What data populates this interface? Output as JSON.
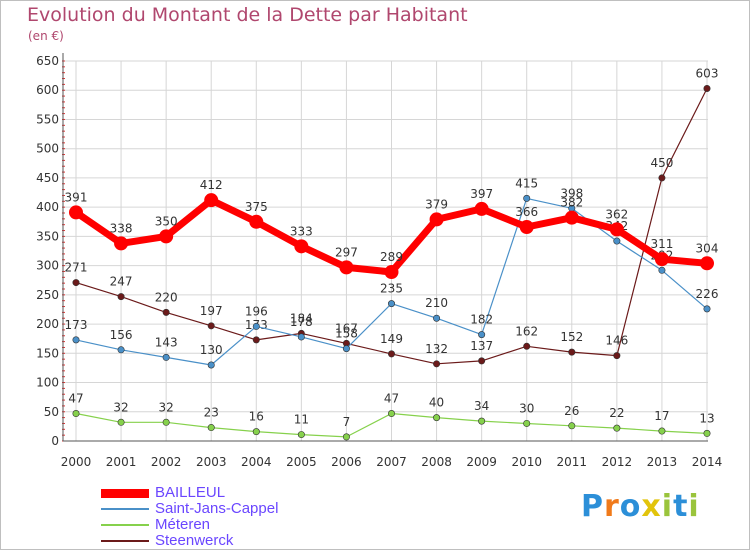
{
  "title": "Evolution du Montant de la Dette par Habitant",
  "subtitle": "(en €)",
  "brand": {
    "letters": [
      "P",
      "r",
      "o",
      "x",
      "i",
      "t",
      "i"
    ],
    "colors": [
      "#2c8fd8",
      "#f07a1a",
      "#2c8fd8",
      "#e2c40c",
      "#9ac43c",
      "#2c8fd8",
      "#9ac43c"
    ]
  },
  "chart_data": {
    "type": "line",
    "x": [
      "2000",
      "2001",
      "2002",
      "2003",
      "2004",
      "2005",
      "2006",
      "2007",
      "2008",
      "2009",
      "2010",
      "2011",
      "2012",
      "2013",
      "2014"
    ],
    "ylim": [
      0,
      650
    ],
    "yticks": [
      "0",
      "50",
      "100",
      "150",
      "200",
      "250",
      "300",
      "350",
      "400",
      "450",
      "500",
      "550",
      "600",
      "650"
    ],
    "grid": true,
    "legend_position": "bottom-left",
    "series": [
      {
        "name": "BAILLEUL",
        "color": "#ff0000",
        "values": [
          391,
          338,
          350,
          412,
          375,
          333,
          297,
          289,
          379,
          397,
          366,
          382,
          362,
          311,
          304
        ],
        "labels": [
          "391",
          "338",
          "350",
          "412",
          "375",
          "333",
          "297",
          "289",
          "379",
          "397",
          "366",
          "382",
          "362",
          "311",
          "304"
        ]
      },
      {
        "name": "Saint-Jans-Cappel",
        "color": "#4a90c8",
        "values": [
          173,
          156,
          143,
          130,
          196,
          178,
          158,
          235,
          210,
          182,
          415,
          398,
          342,
          292,
          226
        ],
        "labels": [
          "173",
          "156",
          "143",
          "130",
          "196",
          "178",
          "158",
          "235",
          "210",
          "182",
          "415",
          "398",
          "342",
          "292",
          "226"
        ]
      },
      {
        "name": "Méteren",
        "color": "#86d14c",
        "values": [
          47,
          32,
          32,
          23,
          16,
          11,
          7,
          47,
          40,
          34,
          30,
          26,
          22,
          17,
          13
        ],
        "labels": [
          "47",
          "32",
          "32",
          "23",
          "16",
          "11",
          "7",
          "47",
          "40",
          "34",
          "30",
          "26",
          "22",
          "17",
          "13"
        ]
      },
      {
        "name": "Steenwerck",
        "color": "#6b1a1a",
        "values": [
          271,
          247,
          220,
          197,
          173,
          184,
          167,
          149,
          132,
          137,
          162,
          152,
          146,
          450,
          603
        ],
        "labels": [
          "271",
          "247",
          "220",
          "197",
          "173",
          "184",
          "167",
          "149",
          "132",
          "137",
          "162",
          "152",
          "146",
          "450",
          "603"
        ]
      }
    ]
  }
}
